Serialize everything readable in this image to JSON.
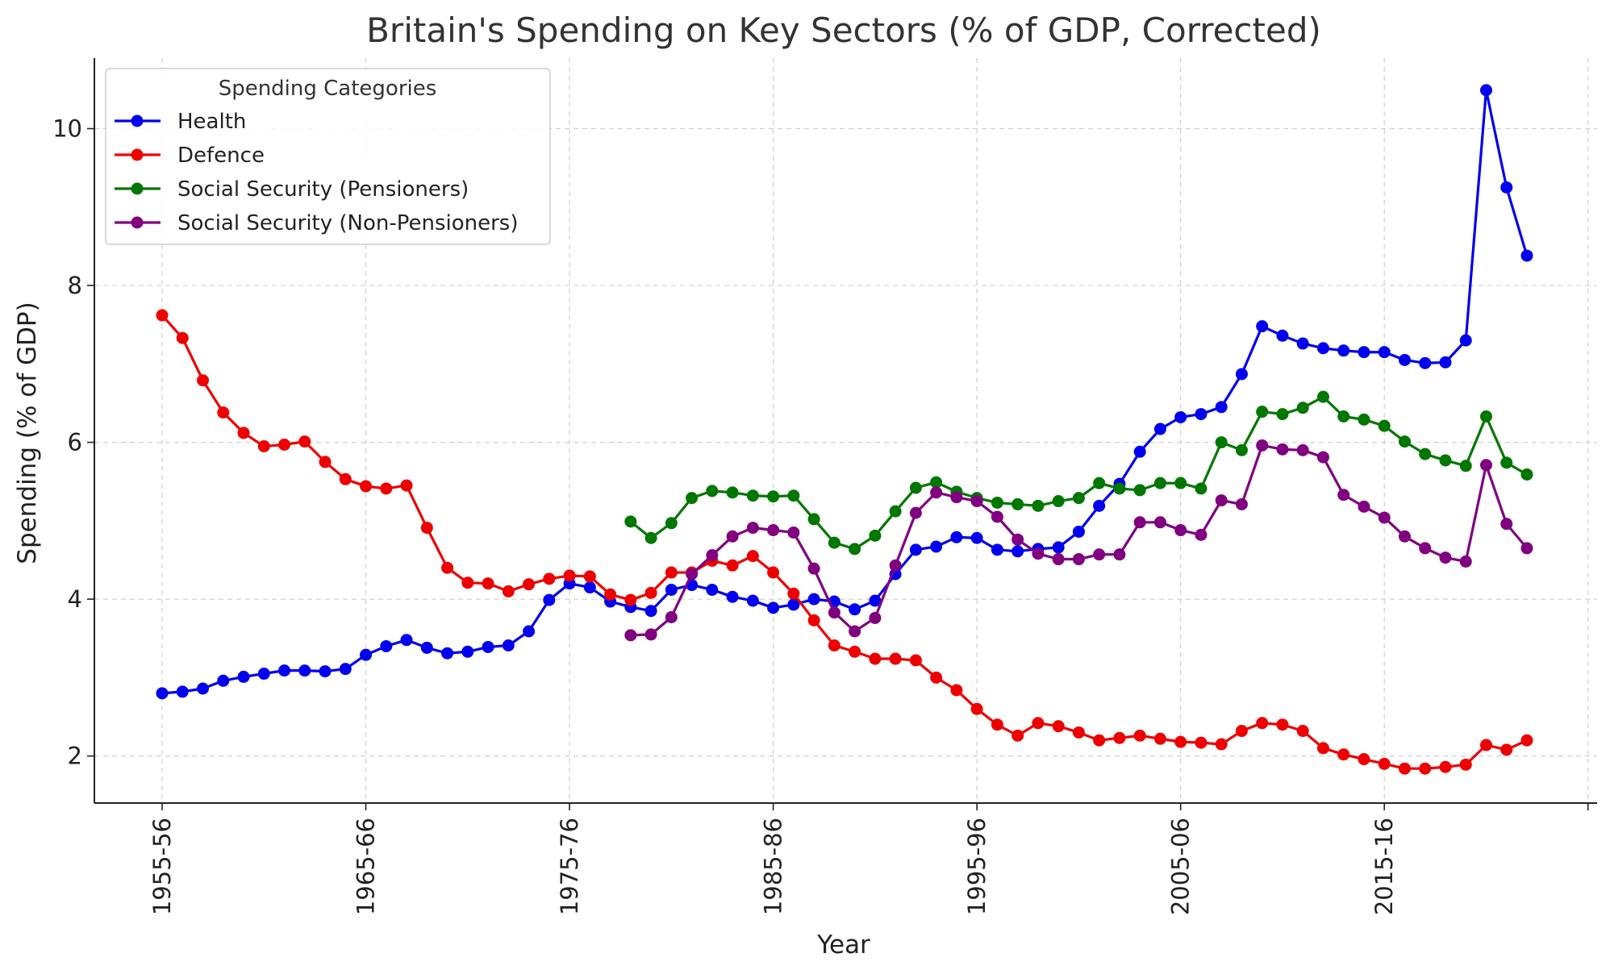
{
  "chart_data": {
    "type": "line",
    "title": "Britain's Spending on Key Sectors (% of GDP, Corrected)",
    "xlabel": "Year",
    "ylabel": "Spending (% of GDP)",
    "ylim": [
      1.4,
      10.9
    ],
    "yticks": [
      2,
      4,
      6,
      8,
      10
    ],
    "x_tick_labels": [
      "1955-56",
      "1965-66",
      "1975-76",
      "1985-86",
      "1995-96",
      "2005-06",
      "2015-16"
    ],
    "grid": true,
    "legend_title": "Spending Categories",
    "legend_position": "top-left",
    "start_year": 1955,
    "series": [
      {
        "name": "Health",
        "color": "#0000ee",
        "start_index": 0,
        "values": [
          2.8,
          2.82,
          2.86,
          2.96,
          3.01,
          3.05,
          3.09,
          3.09,
          3.08,
          3.11,
          3.29,
          3.4,
          3.48,
          3.38,
          3.31,
          3.33,
          3.39,
          3.41,
          3.59,
          3.99,
          4.2,
          4.15,
          3.97,
          3.9,
          3.85,
          4.12,
          4.18,
          4.12,
          4.03,
          3.98,
          3.89,
          3.93,
          4.0,
          3.97,
          3.87,
          3.98,
          4.32,
          4.63,
          4.67,
          4.79,
          4.78,
          4.63,
          4.61,
          4.64,
          4.66,
          4.86,
          5.19,
          5.47,
          5.88,
          6.17,
          6.32,
          6.36,
          6.45,
          6.87,
          7.48,
          7.36,
          7.26,
          7.2,
          7.17,
          7.15,
          7.15,
          7.05,
          7.01,
          7.02,
          7.3,
          10.49,
          9.25,
          8.38
        ]
      },
      {
        "name": "Defence",
        "color": "#ee0000",
        "start_index": 0,
        "values": [
          7.62,
          7.33,
          6.79,
          6.38,
          6.12,
          5.95,
          5.97,
          6.01,
          5.75,
          5.53,
          5.44,
          5.41,
          5.45,
          4.91,
          4.4,
          4.21,
          4.2,
          4.1,
          4.19,
          4.26,
          4.3,
          4.29,
          4.06,
          3.99,
          4.08,
          4.34,
          4.34,
          4.49,
          4.43,
          4.55,
          4.34,
          4.07,
          3.73,
          3.41,
          3.33,
          3.24,
          3.24,
          3.22,
          3.0,
          2.84,
          2.6,
          2.4,
          2.26,
          2.42,
          2.38,
          2.3,
          2.2,
          2.23,
          2.26,
          2.22,
          2.18,
          2.17,
          2.15,
          2.32,
          2.42,
          2.4,
          2.32,
          2.1,
          2.02,
          1.96,
          1.9,
          1.84,
          1.84,
          1.86,
          1.89,
          2.14,
          2.08,
          2.2
        ]
      },
      {
        "name": "Social Security (Pensioners)",
        "color": "#007700",
        "start_index": 23,
        "values": [
          4.99,
          4.78,
          4.97,
          5.29,
          5.38,
          5.36,
          5.32,
          5.31,
          5.32,
          5.02,
          4.72,
          4.64,
          4.81,
          5.12,
          5.42,
          5.49,
          5.37,
          5.29,
          5.23,
          5.21,
          5.19,
          5.25,
          5.29,
          5.48,
          5.41,
          5.39,
          5.48,
          5.48,
          5.41,
          6.0,
          5.9,
          6.39,
          6.36,
          6.44,
          6.58,
          6.33,
          6.29,
          6.21,
          6.01,
          5.85,
          5.77,
          5.7,
          6.33,
          5.74,
          5.59
        ]
      },
      {
        "name": "Social Security (Non-Pensioners)",
        "color": "#800080",
        "start_index": 23,
        "values": [
          3.54,
          3.55,
          3.77,
          4.32,
          4.56,
          4.8,
          4.91,
          4.88,
          4.85,
          4.39,
          3.83,
          3.59,
          3.76,
          4.43,
          5.1,
          5.36,
          5.3,
          5.25,
          5.05,
          4.76,
          4.58,
          4.51,
          4.51,
          4.57,
          4.57,
          4.98,
          4.98,
          4.88,
          4.82,
          5.26,
          5.21,
          5.96,
          5.91,
          5.9,
          5.81,
          5.33,
          5.18,
          5.04,
          4.8,
          4.65,
          4.53,
          4.48,
          5.71,
          4.96,
          4.65
        ]
      }
    ]
  }
}
